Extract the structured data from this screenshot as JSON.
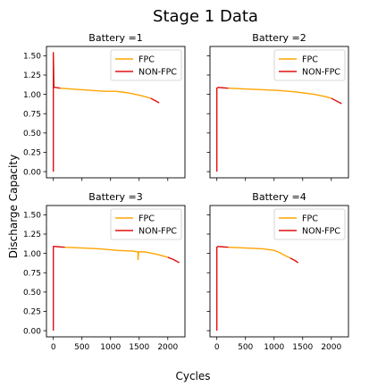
{
  "figure": {
    "title": "Stage 1 Data",
    "xlabel": "Cycles",
    "ylabel": "Discharge Capacity"
  },
  "colors": {
    "fpc": "#ffa500",
    "nonfpc": "#e01010",
    "frame": "#000000"
  },
  "chart_data": [
    {
      "type": "line",
      "title": "Battery =1",
      "xlim": [
        -120,
        2300
      ],
      "ylim": [
        -0.08,
        1.62
      ],
      "xticks": [
        0,
        500,
        1000,
        1500,
        2000
      ],
      "yticks": [
        "0.00",
        "0.25",
        "0.50",
        "0.75",
        "1.00",
        "1.25",
        "1.50"
      ],
      "show_xticklabels": false,
      "show_yticklabels": true,
      "legend": "top-right",
      "series": [
        {
          "name": "FPC",
          "color_key": "fpc",
          "x": [
            120,
            300,
            500,
            700,
            900,
            1100,
            1300,
            1500,
            1600,
            1700
          ],
          "y": [
            1.08,
            1.07,
            1.06,
            1.05,
            1.04,
            1.04,
            1.02,
            0.99,
            0.97,
            0.95
          ]
        },
        {
          "name": "NON-FPC",
          "color_key": "nonfpc",
          "x": [
            0,
            0,
            10,
            20,
            40,
            80,
            120
          ],
          "y": [
            0.0,
            1.54,
            1.1,
            1.09,
            1.09,
            1.085,
            1.08
          ]
        },
        {
          "name": "NON-FPC",
          "color_key": "nonfpc",
          "x": [
            1700,
            1750,
            1800,
            1850
          ],
          "y": [
            0.95,
            0.93,
            0.91,
            0.89
          ],
          "hide_legend": true
        }
      ]
    },
    {
      "type": "line",
      "title": "Battery =2",
      "xlim": [
        -120,
        2300
      ],
      "ylim": [
        -0.08,
        1.62
      ],
      "xticks": [
        0,
        500,
        1000,
        1500,
        2000
      ],
      "yticks": [
        "0.00",
        "0.25",
        "0.50",
        "0.75",
        "1.00",
        "1.25",
        "1.50"
      ],
      "show_xticklabels": false,
      "show_yticklabels": false,
      "legend": "top-right",
      "series": [
        {
          "name": "FPC",
          "color_key": "fpc",
          "x": [
            200,
            500,
            800,
            1100,
            1400,
            1700,
            1900,
            2000
          ],
          "y": [
            1.08,
            1.07,
            1.06,
            1.05,
            1.03,
            1.0,
            0.97,
            0.95
          ]
        },
        {
          "name": "NON-FPC",
          "color_key": "nonfpc",
          "x": [
            0,
            0,
            20,
            100,
            200
          ],
          "y": [
            0.0,
            1.08,
            1.09,
            1.085,
            1.08
          ]
        },
        {
          "name": "NON-FPC",
          "color_key": "nonfpc",
          "x": [
            2000,
            2100,
            2180
          ],
          "y": [
            0.95,
            0.91,
            0.88
          ],
          "hide_legend": true
        }
      ]
    },
    {
      "type": "line",
      "title": "Battery =3",
      "xlim": [
        -120,
        2300
      ],
      "ylim": [
        -0.08,
        1.62
      ],
      "xticks": [
        0,
        500,
        1000,
        1500,
        2000
      ],
      "yticks": [
        "0.00",
        "0.25",
        "0.50",
        "0.75",
        "1.00",
        "1.25",
        "1.50"
      ],
      "show_xticklabels": true,
      "show_yticklabels": true,
      "legend": "top-right",
      "series": [
        {
          "name": "FPC",
          "color_key": "fpc",
          "x": [
            200,
            500,
            800,
            1100,
            1400,
            1480,
            1480,
            1490,
            1600,
            1800,
            2000
          ],
          "y": [
            1.08,
            1.07,
            1.06,
            1.04,
            1.03,
            1.02,
            0.92,
            1.02,
            1.02,
            0.99,
            0.95
          ]
        },
        {
          "name": "NON-FPC",
          "color_key": "nonfpc",
          "x": [
            0,
            0,
            20,
            100,
            200
          ],
          "y": [
            0.0,
            1.09,
            1.09,
            1.085,
            1.08
          ]
        },
        {
          "name": "NON-FPC",
          "color_key": "nonfpc",
          "x": [
            2000,
            2100,
            2200
          ],
          "y": [
            0.95,
            0.92,
            0.88
          ],
          "hide_legend": true
        }
      ]
    },
    {
      "type": "line",
      "title": "Battery =4",
      "xlim": [
        -120,
        2300
      ],
      "ylim": [
        -0.08,
        1.62
      ],
      "xticks": [
        0,
        500,
        1000,
        1500,
        2000
      ],
      "yticks": [
        "0.00",
        "0.25",
        "0.50",
        "0.75",
        "1.00",
        "1.25",
        "1.50"
      ],
      "show_xticklabels": true,
      "show_yticklabels": false,
      "legend": "top-right",
      "series": [
        {
          "name": "FPC",
          "color_key": "fpc",
          "x": [
            200,
            500,
            800,
            1000,
            1100,
            1200,
            1280
          ],
          "y": [
            1.08,
            1.07,
            1.06,
            1.04,
            1.01,
            0.97,
            0.94
          ]
        },
        {
          "name": "NON-FPC",
          "color_key": "nonfpc",
          "x": [
            0,
            0,
            20,
            100,
            200
          ],
          "y": [
            0.0,
            1.08,
            1.09,
            1.085,
            1.08
          ]
        },
        {
          "name": "NON-FPC",
          "color_key": "nonfpc",
          "x": [
            1280,
            1360,
            1420
          ],
          "y": [
            0.94,
            0.91,
            0.88
          ],
          "hide_legend": true
        }
      ]
    }
  ]
}
